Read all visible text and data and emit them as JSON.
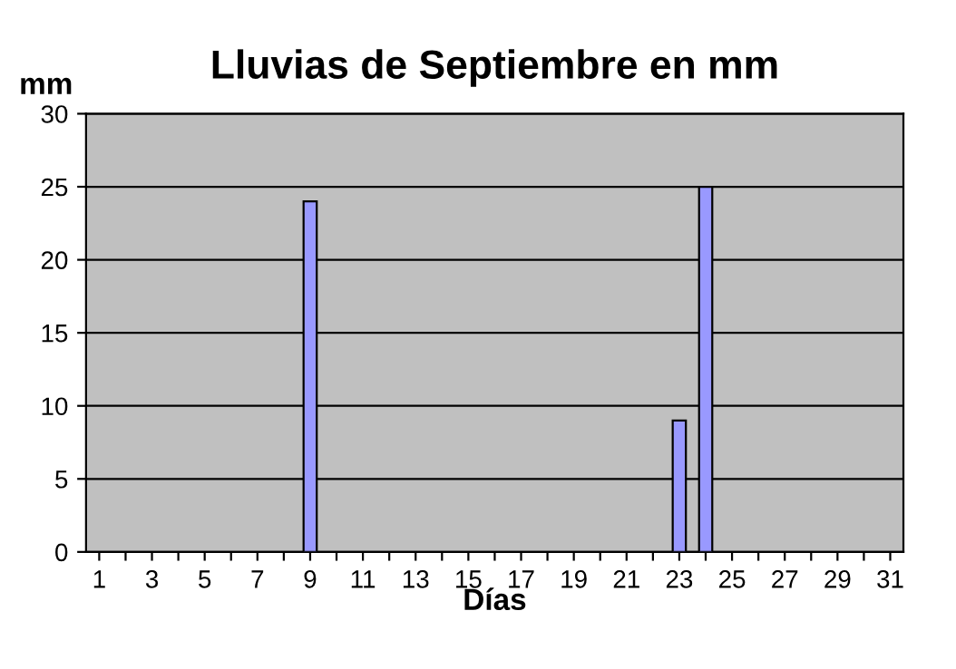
{
  "chart_data": {
    "type": "bar",
    "title": "Lluvias de Septiembre en mm",
    "xlabel": "Días",
    "ylabel": "mm",
    "categories": [
      "1",
      null,
      "3",
      null,
      "5",
      null,
      "7",
      null,
      "9",
      null,
      "11",
      null,
      "13",
      null,
      "15",
      null,
      "17",
      null,
      "19",
      null,
      "21",
      null,
      "23",
      null,
      "25",
      null,
      "27",
      null,
      "29",
      null,
      "31"
    ],
    "values": [
      0,
      0,
      0,
      0,
      0,
      0,
      0,
      0,
      24,
      0,
      0,
      0,
      0,
      0,
      0,
      0,
      0,
      0,
      0,
      0,
      0,
      0,
      9,
      25,
      0,
      0,
      0,
      0,
      0,
      0,
      0
    ],
    "color": "#9999ff",
    "ylim": [
      0,
      30
    ],
    "yticks": [
      0,
      5,
      10,
      15,
      20,
      25,
      30
    ],
    "grid": "y",
    "legend": false
  }
}
